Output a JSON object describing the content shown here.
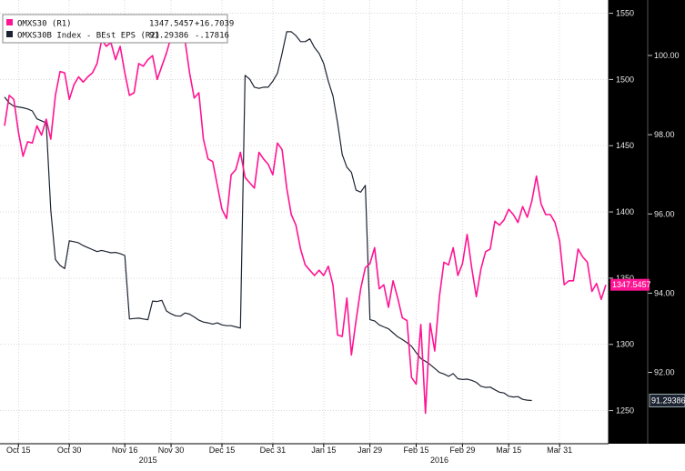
{
  "legend": [
    {
      "name": "OMXS30 (R1)",
      "value": "1347.5457",
      "change": "+16.7039",
      "color": "#ff1493"
    },
    {
      "name": "OMXS30B Index - BEst EPS (R2)",
      "value": "91.29386",
      "change": "-.17816",
      "color": "#1c2331"
    }
  ],
  "axis_badges": {
    "r1": "1347.5457",
    "r2": "91.29386"
  },
  "chart_data": {
    "type": "line",
    "x_tick_labels": [
      "Oct 15",
      "Oct 30",
      "Nov 16",
      "Nov 30",
      "Dec 15",
      "Dec 31",
      "Jan 15",
      "Jan 29",
      "Feb 15",
      "Feb 29",
      "Mar 15",
      "Mar 31"
    ],
    "x_tick_index": [
      3,
      14,
      26,
      36,
      47,
      58,
      69,
      79,
      89,
      99,
      109,
      120
    ],
    "year_labels": [
      {
        "label": "2015",
        "at": 31
      },
      {
        "label": "2016",
        "at": 94
      }
    ],
    "r1_axis": {
      "ticks": [
        "1550",
        "1500",
        "1450",
        "1400",
        "1350",
        "1300",
        "1250"
      ],
      "ylim": [
        1225,
        1560
      ]
    },
    "r2_axis": {
      "ticks": [
        "100.00",
        "98.00",
        "96.00",
        "94.00",
        "92.00"
      ],
      "ylim": [
        90.2,
        101.4
      ]
    },
    "grid": true,
    "series": [
      {
        "name": "OMXS30 (R1)",
        "axis": "R1",
        "color": "#ff1493",
        "values": [
          1465,
          1488,
          1485,
          1460,
          1442,
          1453,
          1452,
          1465,
          1458,
          1470,
          1455,
          1488,
          1506,
          1505,
          1485,
          1496,
          1502,
          1498,
          1502,
          1505,
          1512,
          1530,
          1525,
          1528,
          1515,
          1525,
          1505,
          1488,
          1490,
          1512,
          1510,
          1515,
          1518,
          1500,
          1510,
          1520,
          1532,
          1528,
          1536,
          1530,
          1505,
          1486,
          1490,
          1455,
          1440,
          1438,
          1420,
          1402,
          1395,
          1428,
          1432,
          1445,
          1426,
          1422,
          1418,
          1445,
          1440,
          1436,
          1428,
          1452,
          1447,
          1418,
          1398,
          1390,
          1372,
          1360,
          1356,
          1352,
          1356,
          1352,
          1359,
          1345,
          1307,
          1306,
          1335,
          1292,
          1318,
          1342,
          1358,
          1361,
          1373,
          1342,
          1345,
          1328,
          1348,
          1335,
          1320,
          1318,
          1275,
          1270,
          1315,
          1248,
          1316,
          1295,
          1336,
          1362,
          1360,
          1373,
          1352,
          1361,
          1383,
          1358,
          1336,
          1357,
          1370,
          1372,
          1393,
          1390,
          1394,
          1402,
          1398,
          1392,
          1404,
          1396,
          1408,
          1427,
          1406,
          1398,
          1398,
          1392,
          1378,
          1345,
          1348,
          1348,
          1372,
          1366,
          1362,
          1340,
          1346,
          1334,
          1345
        ]
      },
      {
        "name": "OMXS30B Index - BEst EPS (R2)",
        "axis": "R2",
        "color": "#1c2331",
        "values": [
          98.95,
          98.8,
          98.72,
          98.7,
          98.68,
          98.65,
          98.6,
          98.4,
          98.35,
          98.3,
          96.1,
          94.85,
          94.7,
          94.62,
          95.32,
          95.3,
          95.27,
          95.2,
          95.15,
          95.1,
          95.05,
          95.08,
          95.05,
          95.02,
          95.03,
          95.0,
          94.95,
          93.35,
          93.36,
          93.37,
          93.35,
          93.33,
          93.8,
          93.79,
          93.82,
          93.55,
          93.48,
          93.43,
          93.42,
          93.5,
          93.47,
          93.4,
          93.32,
          93.27,
          93.25,
          93.22,
          93.25,
          93.2,
          93.18,
          93.18,
          93.15,
          93.12,
          99.5,
          99.4,
          99.2,
          99.17,
          99.2,
          99.2,
          99.35,
          99.55,
          100.05,
          100.6,
          100.6,
          100.5,
          100.35,
          100.35,
          100.42,
          100.2,
          100.05,
          99.8,
          99.35,
          98.98,
          98.3,
          97.5,
          97.18,
          97.05,
          96.6,
          96.55,
          96.72,
          93.33,
          93.3,
          93.2,
          93.15,
          93.1,
          93.0,
          92.9,
          92.83,
          92.75,
          92.66,
          92.5,
          92.35,
          92.28,
          92.2,
          92.1,
          92.0,
          91.96,
          91.9,
          91.97,
          91.84,
          91.82,
          91.83,
          91.8,
          91.75,
          91.65,
          91.62,
          91.63,
          91.56,
          91.5,
          91.48,
          91.4,
          91.38,
          91.39,
          91.32,
          91.3,
          91.29
        ]
      }
    ]
  }
}
